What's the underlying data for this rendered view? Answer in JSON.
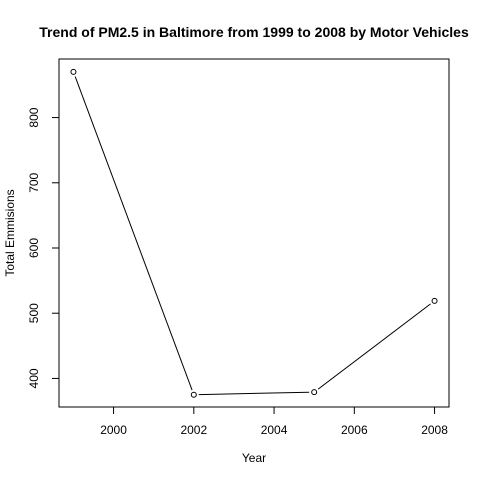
{
  "chart_data": {
    "type": "line",
    "title": "Trend of PM2.5 in Baltimore from 1999 to 2008 by Motor Vehicles",
    "xlabel": "Year",
    "ylabel": "Total Emmisions",
    "x": [
      1999,
      2002,
      2005,
      2008
    ],
    "series": [
      {
        "values": [
          870,
          375,
          379,
          519
        ]
      }
    ],
    "xlim": [
      1998.64,
      2008.36
    ],
    "ylim": [
      356.2,
      889.8
    ],
    "xticks": [
      2000,
      2002,
      2004,
      2006,
      2008
    ],
    "yticks": [
      400,
      500,
      600,
      700,
      800
    ],
    "grid": false,
    "marker": "open-circle",
    "line_color": "#000000"
  }
}
